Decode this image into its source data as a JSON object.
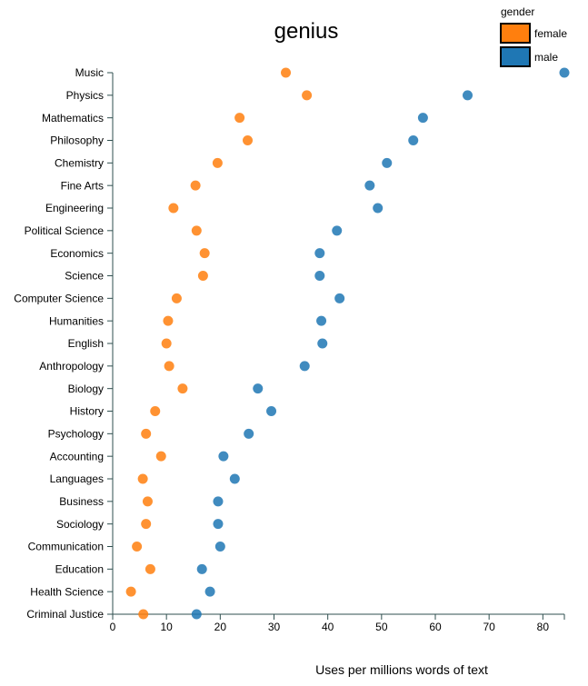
{
  "chart_data": {
    "type": "scatter",
    "title": "genius",
    "xlabel": "Uses per millions words of text",
    "ylabel": "",
    "xlim": [
      0,
      84
    ],
    "xticks": [
      0,
      10,
      20,
      30,
      40,
      50,
      60,
      70,
      80
    ],
    "grid": false,
    "legend": {
      "title": "gender",
      "position": "top-right",
      "entries": [
        {
          "name": "female",
          "color": "#ff7f0e"
        },
        {
          "name": "male",
          "color": "#1f77b4"
        }
      ]
    },
    "categories": [
      "Music",
      "Physics",
      "Mathematics",
      "Philosophy",
      "Chemistry",
      "Fine Arts",
      "Engineering",
      "Political Science",
      "Economics",
      "Science",
      "Computer Science",
      "Humanities",
      "English",
      "Anthropology",
      "Biology",
      "History",
      "Psychology",
      "Accounting",
      "Languages",
      "Business",
      "Sociology",
      "Communication",
      "Education",
      "Health Science",
      "Criminal Justice"
    ],
    "series": [
      {
        "name": "female",
        "color": "#ff7f0e",
        "values": [
          32.2,
          36.1,
          23.6,
          25.1,
          19.5,
          15.4,
          11.3,
          15.6,
          17.1,
          16.8,
          11.9,
          10.3,
          10.0,
          10.5,
          13.0,
          7.9,
          6.2,
          9.0,
          5.6,
          6.5,
          6.2,
          4.5,
          7.0,
          3.4,
          5.7
        ]
      },
      {
        "name": "male",
        "color": "#1f77b4",
        "values": [
          84.0,
          66.0,
          57.7,
          55.9,
          51.0,
          47.8,
          49.3,
          41.7,
          38.5,
          38.5,
          42.2,
          38.8,
          39.0,
          35.7,
          27.0,
          29.5,
          25.3,
          20.6,
          22.7,
          19.6,
          19.6,
          20.0,
          16.6,
          18.1,
          15.6
        ]
      }
    ]
  }
}
